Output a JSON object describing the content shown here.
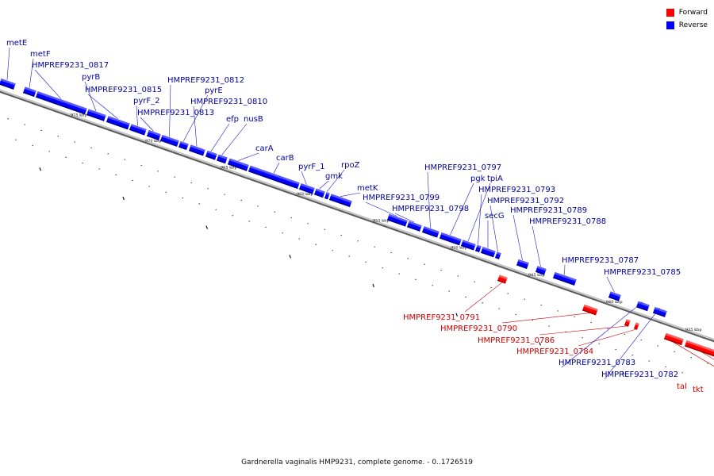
{
  "caption": "Gardnerella vaginalis HMP9231, complete genome. - 0..1726519",
  "legend": [
    {
      "label": "Forward",
      "color": "#ff0000"
    },
    {
      "label": "Reverse",
      "color": "#0000ff"
    }
  ],
  "colors": {
    "forward": "#ff0000",
    "reverse": "#0000ff",
    "backbone": "#8a8a8a"
  },
  "ticks": [
    "975 kbp",
    "970 kbp",
    "965 kbp",
    "960 kbp",
    "955 kbp",
    "950 kbp",
    "945 kbp",
    "940 kbp",
    "935 kbp"
  ],
  "genes": [
    {
      "label": "metE",
      "strand": "reverse"
    },
    {
      "label": "metF",
      "strand": "reverse"
    },
    {
      "label": "HMPREF9231_0817",
      "strand": "reverse"
    },
    {
      "label": "pyrB",
      "strand": "reverse"
    },
    {
      "label": "HMPREF9231_0815",
      "strand": "reverse"
    },
    {
      "label": "pyrF_2",
      "strand": "reverse"
    },
    {
      "label": "HMPREF9231_0813",
      "strand": "reverse"
    },
    {
      "label": "HMPREF9231_0812",
      "strand": "reverse"
    },
    {
      "label": "pyrE",
      "strand": "reverse"
    },
    {
      "label": "HMPREF9231_0810",
      "strand": "reverse"
    },
    {
      "label": "efp",
      "strand": "reverse"
    },
    {
      "label": "nusB",
      "strand": "reverse"
    },
    {
      "label": "carA",
      "strand": "reverse"
    },
    {
      "label": "carB",
      "strand": "reverse"
    },
    {
      "label": "pyrF_1",
      "strand": "reverse"
    },
    {
      "label": "gmk",
      "strand": "reverse"
    },
    {
      "label": "rpoZ",
      "strand": "reverse"
    },
    {
      "label": "metK",
      "strand": "reverse"
    },
    {
      "label": "HMPREF9231_0799",
      "strand": "reverse"
    },
    {
      "label": "HMPREF9231_0798",
      "strand": "reverse"
    },
    {
      "label": "HMPREF9231_0797",
      "strand": "reverse"
    },
    {
      "label": "pgk",
      "strand": "reverse"
    },
    {
      "label": "tpiA",
      "strand": "reverse"
    },
    {
      "label": "HMPREF9231_0793",
      "strand": "reverse"
    },
    {
      "label": "secG",
      "strand": "reverse"
    },
    {
      "label": "HMPREF9231_0792",
      "strand": "reverse"
    },
    {
      "label": "HMPREF9231_0789",
      "strand": "reverse"
    },
    {
      "label": "HMPREF9231_0788",
      "strand": "reverse"
    },
    {
      "label": "HMPREF9231_0787",
      "strand": "reverse"
    },
    {
      "label": "HMPREF9231_0785",
      "strand": "reverse"
    },
    {
      "label": "HMPREF9231_0791",
      "strand": "forward"
    },
    {
      "label": "HMPREF9231_0790",
      "strand": "forward"
    },
    {
      "label": "HMPREF9231_0786",
      "strand": "forward"
    },
    {
      "label": "HMPREF9231_0784",
      "strand": "forward"
    },
    {
      "label": "HMPREF9231_0783",
      "strand": "reverse"
    },
    {
      "label": "HMPREF9231_0782",
      "strand": "reverse"
    },
    {
      "label": "tal",
      "strand": "forward"
    },
    {
      "label": "tkt",
      "strand": "forward"
    }
  ]
}
